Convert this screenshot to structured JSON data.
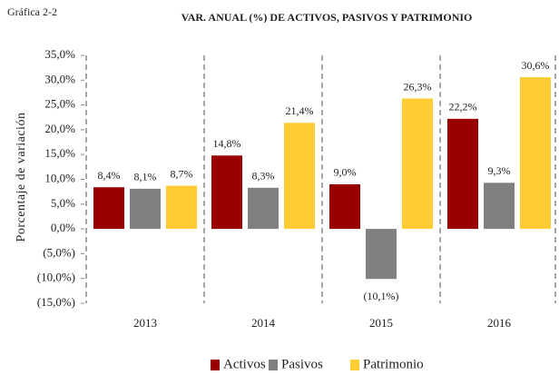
{
  "chart_data": {
    "type": "bar",
    "label": "Gráfica 2-2",
    "title": "VAR. ANUAL (%) DE ACTIVOS, PASIVOS Y PATRIMONIO",
    "y_label": "Porcentaje de variación",
    "categories": [
      "2013",
      "2014",
      "2015",
      "2016"
    ],
    "series": [
      {
        "name": "Activos",
        "color": "#990000",
        "values": [
          8.4,
          14.8,
          9.0,
          22.2
        ],
        "value_labels": [
          "8,4%",
          "14,8%",
          "9,0%",
          "22,2%"
        ]
      },
      {
        "name": "Pasivos",
        "color": "#808080",
        "values": [
          8.1,
          8.3,
          -10.1,
          9.3
        ],
        "value_labels": [
          "8,1%",
          "8,3%",
          "(10,1%)",
          "9,3%"
        ]
      },
      {
        "name": "Patrimonio",
        "color": "#ffcc33",
        "values": [
          8.7,
          21.4,
          26.3,
          30.6
        ],
        "value_labels": [
          "8,7%",
          "21,4%",
          "26,3%",
          "30,6%"
        ]
      }
    ],
    "ylim": [
      -15,
      35
    ],
    "yticks": [
      {
        "value": 35,
        "label": "35,0%"
      },
      {
        "value": 30,
        "label": "30,0%"
      },
      {
        "value": 25,
        "label": "25,0%"
      },
      {
        "value": 20,
        "label": "20,0%"
      },
      {
        "value": 15,
        "label": "15,0%"
      },
      {
        "value": 10,
        "label": "10,0%"
      },
      {
        "value": 5,
        "label": "5,0%"
      },
      {
        "value": 0,
        "label": "0,0%"
      },
      {
        "value": -5,
        "label": "(5,0%)"
      },
      {
        "value": -10,
        "label": "(10,0%)"
      },
      {
        "value": -15,
        "label": "(15,0%)"
      }
    ],
    "legend": "bottom"
  }
}
